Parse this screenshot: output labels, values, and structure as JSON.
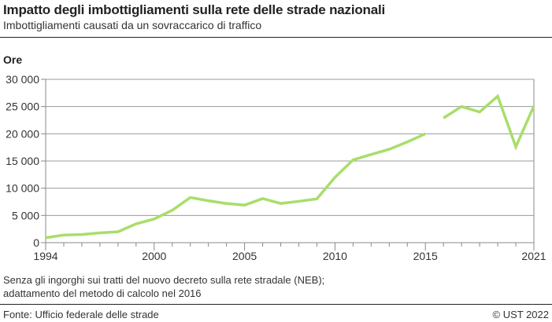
{
  "header": {
    "title": "Impatto degli imbottigliamenti sulla rete delle strade nazionali",
    "subtitle": "Imbottigliamenti causati da un sovraccarico di traffico"
  },
  "footer": {
    "note_line1": "Senza gli ingorghi sui tratti del nuovo decreto sulla rete stradale (NEB);",
    "note_line2": "adattamento del metodo di calcolo nel 2016",
    "source": "Fonte: Ufficio federale delle strade",
    "copyright": "© UST 2022"
  },
  "chart_data": {
    "type": "line",
    "title": "Impatto degli imbottigliamenti sulla rete delle strade nazionali",
    "subtitle": "Imbottigliamenti causati da un sovraccarico di traffico",
    "ylabel": "Ore",
    "xlim": [
      1994,
      2021
    ],
    "ylim": [
      0,
      30000
    ],
    "grid": true,
    "line_color": "#a8de6a",
    "x_ticks": [
      "1994",
      "2000",
      "2005",
      "2010",
      "2015",
      "2021"
    ],
    "y_ticks": [
      "0",
      "5 000",
      "10 000",
      "15 000",
      "20 000",
      "25 000",
      "30 000"
    ],
    "x": [
      1994,
      1995,
      1996,
      1997,
      1998,
      1999,
      2000,
      2001,
      2002,
      2003,
      2004,
      2005,
      2006,
      2007,
      2008,
      2009,
      2010,
      2011,
      2012,
      2013,
      2014,
      2015,
      2016,
      2017,
      2018,
      2019,
      2020,
      2021
    ],
    "series": [
      {
        "values": [
          900,
          1400,
          1500,
          1800,
          2000,
          3450,
          4350,
          5950,
          8300,
          7700,
          7200,
          6900,
          8100,
          7200,
          7600,
          8050,
          12000,
          15200,
          16200,
          17150,
          18500,
          20000,
          22900,
          25000,
          24000,
          26900,
          17600,
          25100
        ]
      }
    ],
    "break_between": [
      2015,
      2016
    ]
  }
}
